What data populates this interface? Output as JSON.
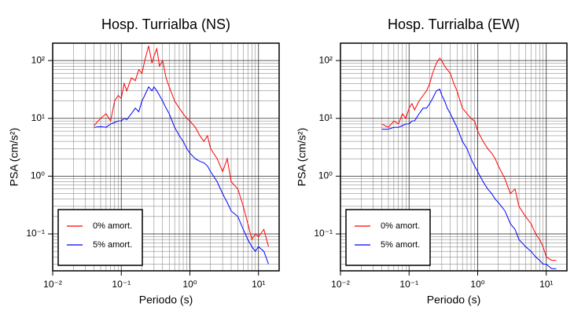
{
  "chart_data": [
    {
      "type": "line",
      "title": "Hosp. Turrialba (NS)",
      "xlabel": "Periodo (s)",
      "ylabel": "PSA (cm/s²)",
      "xscale": "log",
      "yscale": "log",
      "grid": true,
      "legend": "lower left",
      "xlim": [
        0.01,
        20
      ],
      "ylim": [
        0.023,
        200
      ],
      "xticks": [
        {
          "value": 0.01,
          "label": "10⁻²"
        },
        {
          "value": 0.1,
          "label": "10⁻¹"
        },
        {
          "value": 1,
          "label": "10⁰"
        },
        {
          "value": 10,
          "label": "10¹"
        }
      ],
      "yticks": [
        {
          "value": 0.1,
          "label": "10⁻¹"
        },
        {
          "value": 1,
          "label": "10⁰"
        },
        {
          "value": 10,
          "label": "10¹"
        },
        {
          "value": 100,
          "label": "10²"
        }
      ],
      "x": [
        0.04,
        0.05,
        0.06,
        0.07,
        0.08,
        0.09,
        0.1,
        0.11,
        0.12,
        0.14,
        0.16,
        0.18,
        0.2,
        0.22,
        0.25,
        0.28,
        0.3,
        0.33,
        0.36,
        0.4,
        0.45,
        0.5,
        0.6,
        0.7,
        0.8,
        0.9,
        1.0,
        1.2,
        1.4,
        1.6,
        1.8,
        2.0,
        2.5,
        3.0,
        3.5,
        4.0,
        5.0,
        6.0,
        7.0,
        8.0,
        9.0,
        10,
        12,
        14
      ],
      "series": [
        {
          "name": "0% amort.",
          "color": "#ff0000",
          "values": [
            7.5,
            10,
            12,
            9,
            20,
            25,
            22,
            40,
            30,
            50,
            45,
            70,
            60,
            100,
            180,
            90,
            120,
            160,
            80,
            100,
            50,
            35,
            20,
            15,
            12,
            10,
            9,
            7,
            5,
            4,
            5,
            3,
            2,
            1.2,
            2,
            0.8,
            0.6,
            0.3,
            0.15,
            0.08,
            0.1,
            0.09,
            0.12,
            0.06
          ]
        },
        {
          "name": "5% amort.",
          "color": "#0000ff",
          "values": [
            7,
            7.2,
            7,
            8,
            8.5,
            9,
            9,
            10,
            9.5,
            12,
            15,
            13,
            20,
            25,
            35,
            30,
            35,
            30,
            25,
            20,
            15,
            12,
            7,
            5,
            4,
            3,
            2.5,
            2,
            1.8,
            1.7,
            1.5,
            1.2,
            0.8,
            0.5,
            0.35,
            0.25,
            0.2,
            0.12,
            0.08,
            0.06,
            0.05,
            0.06,
            0.05,
            0.03
          ]
        }
      ]
    },
    {
      "type": "line",
      "title": "Hosp. Turrialba (EW)",
      "xlabel": "Periodo (s)",
      "ylabel": "PSA (cm/s²)",
      "xscale": "log",
      "yscale": "log",
      "grid": true,
      "legend": "lower left",
      "xlim": [
        0.01,
        20
      ],
      "ylim": [
        0.023,
        200
      ],
      "xticks": [
        {
          "value": 0.01,
          "label": "10⁻²"
        },
        {
          "value": 0.1,
          "label": "10⁻¹"
        },
        {
          "value": 1,
          "label": "10⁰"
        },
        {
          "value": 10,
          "label": "10¹"
        }
      ],
      "yticks": [
        {
          "value": 0.1,
          "label": "10⁻¹"
        },
        {
          "value": 1,
          "label": "10⁰"
        },
        {
          "value": 10,
          "label": "10¹"
        },
        {
          "value": 100,
          "label": "10²"
        }
      ],
      "x": [
        0.04,
        0.05,
        0.06,
        0.07,
        0.08,
        0.09,
        0.1,
        0.11,
        0.12,
        0.14,
        0.16,
        0.18,
        0.2,
        0.22,
        0.25,
        0.28,
        0.3,
        0.33,
        0.36,
        0.4,
        0.45,
        0.5,
        0.6,
        0.7,
        0.8,
        0.9,
        1.0,
        1.2,
        1.4,
        1.6,
        1.8,
        2.0,
        2.5,
        3.0,
        3.5,
        4.0,
        5.0,
        6.0,
        7.0,
        8.0,
        9.0,
        10,
        12,
        14
      ],
      "series": [
        {
          "name": "0% amort.",
          "color": "#ff0000",
          "values": [
            8,
            7,
            9,
            8,
            12,
            10,
            15,
            18,
            14,
            20,
            25,
            30,
            40,
            60,
            90,
            110,
            100,
            80,
            70,
            60,
            40,
            30,
            15,
            12,
            10,
            9,
            6,
            4,
            3,
            2.5,
            2,
            1.5,
            0.9,
            0.5,
            0.6,
            0.3,
            0.2,
            0.15,
            0.1,
            0.08,
            0.06,
            0.04,
            0.035,
            0.035
          ]
        },
        {
          "name": "5% amort.",
          "color": "#0000ff",
          "values": [
            6.5,
            6.5,
            7,
            7,
            7.5,
            8,
            8,
            9,
            9,
            12,
            15,
            15,
            18,
            22,
            30,
            32,
            25,
            20,
            15,
            12,
            9,
            7,
            4,
            3,
            2,
            1.5,
            1.2,
            0.8,
            0.6,
            0.5,
            0.4,
            0.35,
            0.25,
            0.15,
            0.12,
            0.08,
            0.06,
            0.05,
            0.04,
            0.035,
            0.03,
            0.03,
            0.025,
            0.025
          ]
        }
      ]
    }
  ]
}
